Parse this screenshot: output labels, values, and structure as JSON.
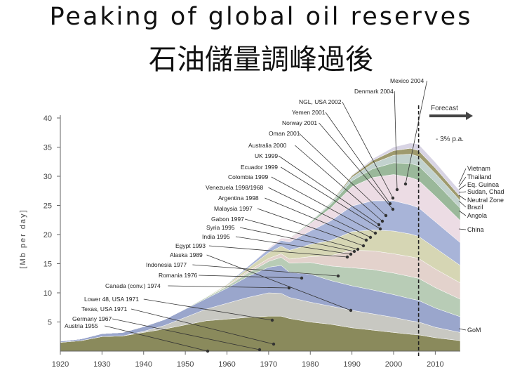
{
  "titles": {
    "english": "Peaking of global oil reserves",
    "chinese": "石油儲量調峰過後"
  },
  "chart_data": {
    "type": "area",
    "stacked": true,
    "ylabel": "[Mb per day]",
    "xlim": [
      1920,
      2016
    ],
    "ylim": [
      0,
      40
    ],
    "x_ticks": [
      1920,
      1930,
      1940,
      1950,
      1960,
      1970,
      1980,
      1990,
      2000,
      2010
    ],
    "y_ticks": [
      5,
      10,
      15,
      20,
      25,
      30,
      35,
      40
    ],
    "forecast": {
      "label": "Forecast",
      "start_year": 2006,
      "rate_label": "- 3% p.a."
    },
    "x": [
      1920,
      1925,
      1930,
      1935,
      1940,
      1945,
      1950,
      1955,
      1960,
      1965,
      1970,
      1973,
      1975,
      1980,
      1985,
      1990,
      1995,
      2000,
      2004,
      2006,
      2010,
      2016
    ],
    "series": [
      {
        "color": "#8a8a5c",
        "values": [
          1.5,
          1.8,
          2.5,
          2.6,
          3.2,
          3.8,
          4.5,
          5.2,
          5.5,
          5.8,
          6.0,
          6.0,
          5.6,
          5.0,
          4.6,
          4.0,
          3.6,
          3.2,
          2.9,
          2.8,
          2.3,
          1.8
        ]
      },
      {
        "color": "#c8c8c2",
        "values": [
          0,
          0,
          0,
          0,
          0.2,
          0.6,
          1.3,
          2.0,
          2.7,
          3.4,
          4.0,
          3.9,
          3.6,
          3.4,
          3.1,
          3.0,
          2.8,
          2.6,
          2.3,
          2.2,
          1.8,
          1.4
        ]
      },
      {
        "color": "#9aa6cc",
        "values": [
          0.2,
          0.3,
          0.5,
          0.6,
          0.8,
          1.0,
          1.4,
          1.8,
          2.6,
          3.6,
          4.4,
          4.8,
          4.3,
          4.8,
          4.4,
          4.2,
          4.1,
          3.9,
          3.8,
          3.7,
          3.3,
          2.7
        ]
      },
      {
        "color": "#b8ccb6",
        "values": [
          0,
          0,
          0,
          0,
          0,
          0,
          0.1,
          0.2,
          0.3,
          0.6,
          1.0,
          1.4,
          1.6,
          2.0,
          2.5,
          3.1,
          3.5,
          3.7,
          3.8,
          3.8,
          3.5,
          3.0
        ]
      },
      {
        "color": "#e3d2cc",
        "values": [
          0,
          0,
          0,
          0,
          0,
          0,
          0,
          0,
          0.1,
          0.3,
          0.5,
          0.6,
          0.7,
          1.0,
          1.8,
          3.0,
          3.2,
          3.3,
          3.4,
          3.4,
          3.2,
          2.8
        ]
      },
      {
        "color": "#d6d6b4",
        "values": [
          0,
          0,
          0,
          0,
          0,
          0,
          0,
          0.1,
          0.2,
          0.5,
          1.0,
          1.3,
          1.5,
          2.1,
          2.6,
          3.2,
          3.6,
          3.9,
          3.9,
          3.8,
          3.6,
          3.0
        ]
      },
      {
        "color": "#a8b4d8",
        "values": [
          0,
          0,
          0,
          0,
          0,
          0,
          0,
          0,
          0.1,
          0.3,
          0.6,
          1.0,
          1.4,
          2.3,
          3.4,
          4.4,
          5.0,
          5.2,
          5.0,
          4.9,
          4.5,
          3.9
        ]
      },
      {
        "color": "#ecdce4",
        "values": [
          0,
          0,
          0,
          0,
          0,
          0,
          0,
          0,
          0,
          0,
          0.2,
          0.4,
          0.6,
          1.3,
          2.2,
          3.3,
          4.0,
          4.5,
          4.7,
          4.7,
          4.4,
          3.8
        ]
      },
      {
        "color": "#9ab89a",
        "values": [
          0,
          0,
          0,
          0,
          0,
          0,
          0,
          0,
          0,
          0,
          0,
          0,
          0.1,
          0.2,
          0.6,
          1.0,
          1.5,
          2.0,
          2.4,
          2.5,
          2.4,
          2.1
        ]
      },
      {
        "color": "#c2d2ce",
        "values": [
          0,
          0,
          0,
          0,
          0,
          0,
          0,
          0,
          0,
          0,
          0,
          0,
          0,
          0.1,
          0.3,
          0.6,
          0.9,
          1.3,
          1.6,
          1.6,
          1.5,
          1.3
        ]
      },
      {
        "color": "#9e9a6e",
        "values": [
          0,
          0,
          0,
          0,
          0,
          0,
          0,
          0,
          0,
          0,
          0,
          0,
          0,
          0,
          0.1,
          0.3,
          0.5,
          0.8,
          1.0,
          1.0,
          0.9,
          0.7
        ]
      },
      {
        "color": "#d8d4e4",
        "values": [
          0,
          0,
          0,
          0,
          0,
          0,
          0,
          0,
          0,
          0,
          0,
          0,
          0,
          0,
          0,
          0.1,
          0.3,
          0.6,
          0.9,
          1.1,
          1.0,
          0.9
        ]
      }
    ],
    "left_labels": [
      "Mexico 2004",
      "Denmark 2004",
      "NGL, USA 2002",
      "Yemen 2001",
      "Norway 2001",
      "Oman 2001",
      "Australia 2000",
      "UK 1999",
      "Ecuador 1999",
      "Colombia 1999",
      "Venezuela 1998/1968",
      "Argentina 1998",
      "Malaysia 1997",
      "Gabon 1997",
      "Syria 1995",
      "India 1995",
      "Egypt 1993",
      "Alaska 1989",
      "Indonesia 1977",
      "Romania 1976",
      "Canada (conv.) 1974",
      "Lower 48, USA 1971",
      "Texas, USA 1971",
      "Germany 1967",
      "Austria 1955"
    ],
    "right_labels": [
      "Vietnam",
      "Thailand",
      "Eq. Guinea",
      "Sudan, Chad",
      "Neutral Zone",
      "Brazil",
      "Angola",
      "China",
      "GoM"
    ]
  }
}
